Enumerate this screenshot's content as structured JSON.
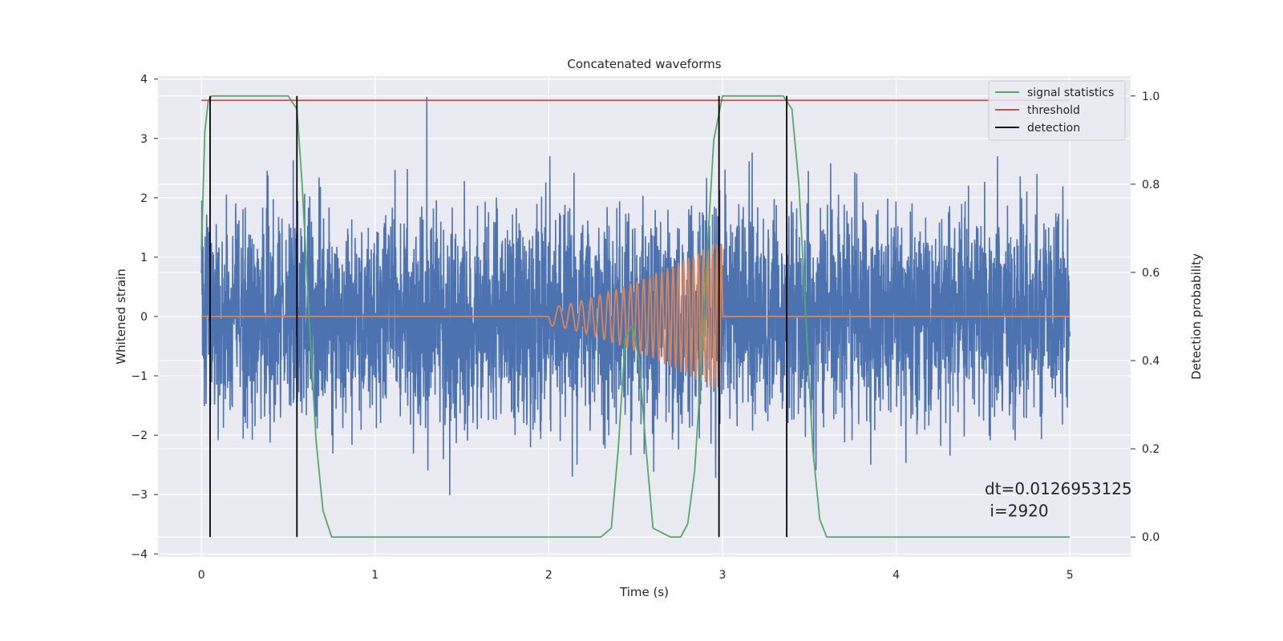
{
  "chart_data": {
    "type": "line",
    "title": "Concatenated waveforms",
    "xlabel": "Time (s)",
    "ylabel_left": "Whitened strain",
    "ylabel_right": "Detection probability",
    "xlim": [
      -0.25,
      5.35
    ],
    "ylim_left": [
      -4.05,
      4.05
    ],
    "ylim_right": [
      -0.045,
      1.045
    ],
    "xticks": [
      0,
      1,
      2,
      3,
      4,
      5
    ],
    "yticks_left": [
      -4,
      -3,
      -2,
      -1,
      0,
      1,
      2,
      3,
      4
    ],
    "yticks_right": [
      0.0,
      0.2,
      0.4,
      0.6,
      0.8,
      1.0
    ],
    "xtick_labels": [
      "0",
      "1",
      "2",
      "3",
      "4",
      "5"
    ],
    "ytick_labels_left": [
      "−4",
      "−3",
      "−2",
      "−1",
      "0",
      "1",
      "2",
      "3",
      "4"
    ],
    "ytick_labels_right": [
      "0.0",
      "0.2",
      "0.4",
      "0.6",
      "0.8",
      "1.0"
    ],
    "grid": true,
    "legend_position": "top-right",
    "series": [
      {
        "name": "",
        "axis": "left",
        "color": "#4c72b0",
        "kind": "noise",
        "x_range": [
          0,
          5
        ],
        "std": 0.9,
        "samples": 4096
      },
      {
        "name": "",
        "axis": "left",
        "color": "#dd8452",
        "kind": "chirp",
        "x_range": [
          0,
          5
        ],
        "chirp_start": 2.0,
        "chirp_end": 3.0,
        "start_freq_hz": 12,
        "end_freq_hz": 40,
        "peak_amplitude": 1.3
      },
      {
        "name": "signal statistics",
        "axis": "right",
        "color": "#55a868",
        "x": [
          0,
          0.02,
          0.04,
          0.06,
          0.1,
          0.5,
          0.55,
          0.58,
          0.62,
          0.66,
          0.7,
          0.75,
          2.3,
          2.36,
          2.4,
          2.44,
          2.48,
          2.52,
          2.56,
          2.6,
          2.7,
          2.76,
          2.8,
          2.84,
          2.88,
          2.92,
          2.95,
          3.0,
          3.05,
          3.35,
          3.4,
          3.44,
          3.48,
          3.52,
          3.56,
          3.6,
          5.0
        ],
        "y": [
          0.65,
          0.92,
          0.99,
          1.0,
          1.0,
          1.0,
          0.97,
          0.8,
          0.5,
          0.22,
          0.06,
          0.0,
          0.0,
          0.02,
          0.2,
          0.45,
          0.48,
          0.4,
          0.2,
          0.02,
          0.0,
          0.0,
          0.03,
          0.15,
          0.4,
          0.7,
          0.9,
          1.0,
          1.0,
          1.0,
          0.97,
          0.8,
          0.5,
          0.2,
          0.04,
          0.0,
          0.0
        ]
      },
      {
        "name": "threshold",
        "axis": "right",
        "color": "#c44e52",
        "x": [
          0,
          5
        ],
        "y": [
          0.99,
          0.99
        ]
      },
      {
        "name": "detection",
        "axis": "right",
        "color": "#000000",
        "kind": "vlines",
        "x": [
          0.05,
          0.55,
          2.98,
          3.37
        ],
        "y_range": [
          0.0,
          1.0
        ]
      }
    ],
    "annotations": [
      {
        "text": "dt=0.0126953125",
        "x": 4.51,
        "y": -3.0
      },
      {
        "text": " i=2920",
        "x": 4.51,
        "y": -3.37
      }
    ]
  }
}
